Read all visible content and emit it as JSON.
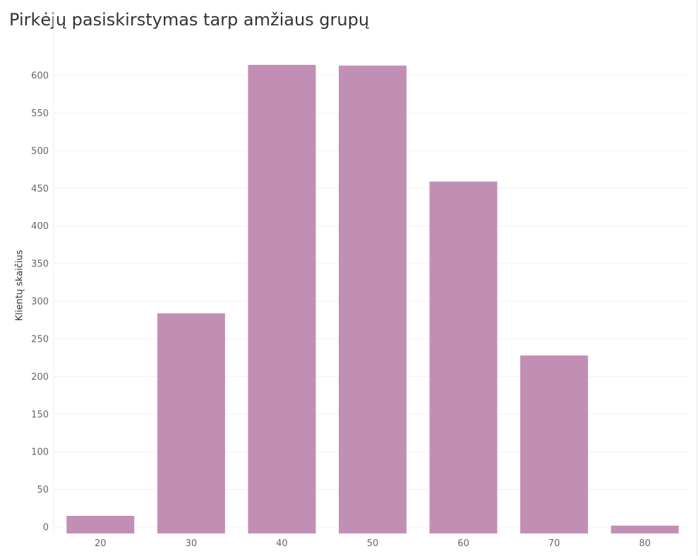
{
  "chart_data": {
    "type": "bar",
    "title": "Pirkėjų pasiskirstymas tarp amžiaus grupų",
    "xlabel": "",
    "ylabel": "Klientų skaičius",
    "categories": [
      "20",
      "30",
      "40",
      "50",
      "60",
      "70",
      "80"
    ],
    "values": [
      15,
      284,
      614,
      613,
      459,
      228,
      2
    ],
    "ylim": [
      -10,
      650
    ],
    "yticks": [
      0,
      50,
      100,
      150,
      200,
      250,
      300,
      350,
      400,
      450,
      500,
      550,
      600
    ],
    "grid": true,
    "bar_color": "#c28fb4",
    "grid_color": "#f0f0f0"
  }
}
